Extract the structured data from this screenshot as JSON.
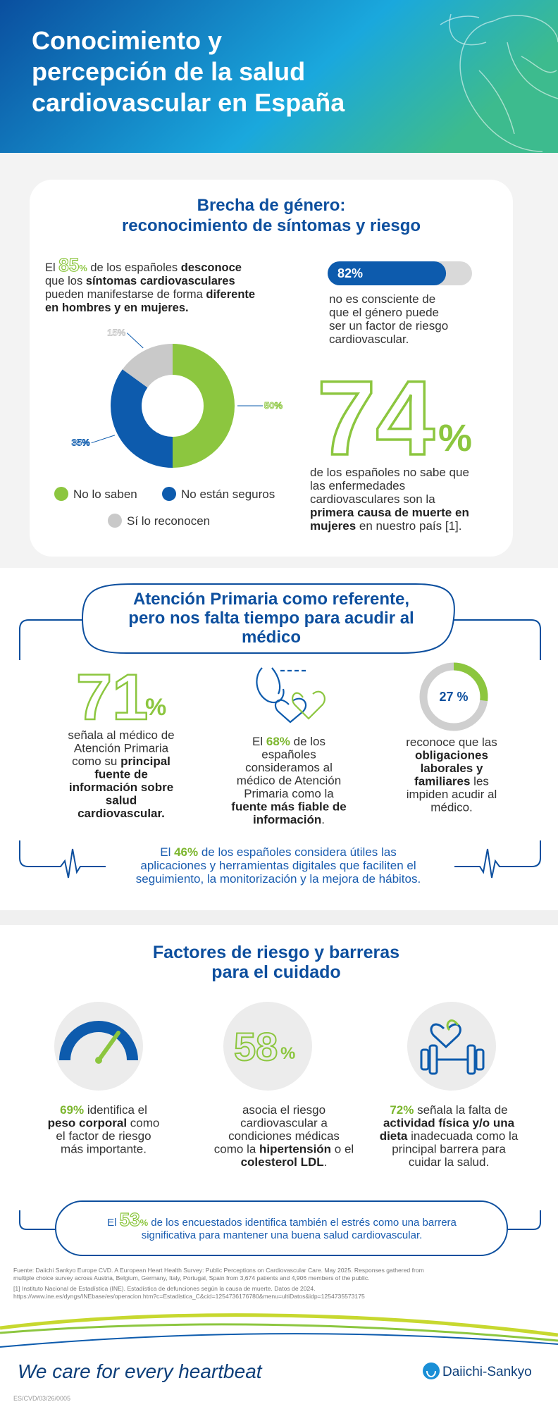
{
  "header": {
    "title": [
      "Conocimiento y",
      "percepción de la salud",
      "cardiovascular en España"
    ]
  },
  "gender": {
    "title": [
      "Brecha de género:",
      "reconocimiento de síntomas y riesgo"
    ],
    "stat85": [
      [
        "El ",
        "85",
        "%",
        " de los españoles ",
        "desconoce"
      ],
      [
        "que los ",
        "síntomas cardiovasculares"
      ],
      [
        "pueden manifestarse de forma ",
        "diferente"
      ],
      [
        "en hombres y en mujeres."
      ]
    ],
    "donut": {
      "type": "pie",
      "series": [
        {
          "name": "No lo saben",
          "color": "#8cc63f",
          "value": 50,
          "label": "50%"
        },
        {
          "name": "No están seguros",
          "color": "#0d5bad",
          "value": 35,
          "label": "35%"
        },
        {
          "name": "Sí lo reconocen",
          "color": "#c9c9c9",
          "value": 15,
          "label": "15%"
        }
      ]
    },
    "bar82": {
      "value": 82,
      "label": "82%",
      "color": "#0d5bad",
      "text": [
        [
          "no es consciente de"
        ],
        [
          "que el género puede"
        ],
        [
          "ser un factor de riesgo"
        ],
        [
          "cardiovascular."
        ]
      ]
    },
    "stat74": {
      "number": "74",
      "unit": "%",
      "text": [
        [
          "de los españoles no sabe que"
        ],
        [
          "las enfermedades"
        ],
        [
          "cardiovasculares son la"
        ],
        [
          "primera causa de muerte en"
        ],
        [
          "mujeres",
          " en nuestro país [1]."
        ]
      ]
    }
  },
  "primary": {
    "title": [
      "Atención Primaria como referente,",
      "pero nos falta tiempo para acudir al",
      "médico"
    ],
    "stat71": {
      "number": "71",
      "unit": "%",
      "text": [
        [
          "señala al médico de"
        ],
        [
          "Atención Primaria"
        ],
        [
          "como su ",
          "principal"
        ],
        [
          "fuente de"
        ],
        [
          "información sobre"
        ],
        [
          "salud"
        ],
        [
          "cardiovascular."
        ]
      ]
    },
    "stat68": [
      [
        "El ",
        "68%",
        " de los"
      ],
      [
        "españoles"
      ],
      [
        "consideramos al"
      ],
      [
        "médico de Atención"
      ],
      [
        "Primaria como la"
      ],
      [
        "fuente más fiable de"
      ],
      [
        "información",
        "."
      ]
    ],
    "ring27": {
      "value": 27,
      "label": "27 %",
      "text": [
        [
          "reconoce que las"
        ],
        [
          "obligaciones"
        ],
        [
          "laborales y"
        ],
        [
          "familiares",
          " les"
        ],
        [
          "impiden acudir al"
        ],
        [
          "médico."
        ]
      ]
    },
    "digital": [
      [
        "El ",
        "46%",
        " de los españoles considera útiles las"
      ],
      [
        "aplicaciones y herramientas digitales que faciliten el"
      ],
      [
        "seguimiento, la monitorización y la mejora de hábitos."
      ]
    ]
  },
  "risk": {
    "title": [
      "Factores de riesgo y barreras",
      "para el cuidado"
    ],
    "stat69": [
      [
        "69%",
        " identifica el"
      ],
      [
        "peso corporal",
        " como"
      ],
      [
        "el factor de riesgo"
      ],
      [
        "más importante."
      ]
    ],
    "stat58": {
      "number": "58",
      "unit": "%",
      "text": [
        [
          "asocia el riesgo"
        ],
        [
          "cardiovascular a"
        ],
        [
          "condiciones médicas"
        ],
        [
          "como la ",
          "hipertensión",
          " o el"
        ],
        [
          "colesterol LDL",
          "."
        ]
      ]
    },
    "stat72": [
      [
        "72%",
        " señala la falta de"
      ],
      [
        "actividad física y/o una"
      ],
      [
        "dieta",
        " inadecuada como la"
      ],
      [
        "principal barrera para"
      ],
      [
        "cuidar la salud."
      ]
    ],
    "stress": [
      [
        "El ",
        "53",
        "%",
        " de los encuestados identifica también el estrés como una barrera"
      ],
      [
        "significativa para mantener una buena salud cardiovascular."
      ]
    ]
  },
  "footnotes": [
    "Fuente: Daiichi Sankyo Europe CVD. A European Heart Health Survey: Public Perceptions on Cardiovascular Care. May 2025. Responses gathered from",
    "multiple choice survey across Austria, Belgium, Germany, Italy, Portugal, Spain from 3,674 patients and 4,906 members of the public.",
    "[1] Instituto Nacional de Estadística (INE). Estadística de defunciones según la causa de muerte. Datos de 2024.",
    "https://www.ine.es/dyngs/INEbase/es/operacion.htm?c=Estadistica_C&cid=1254736176780&menu=ultiDatos&idp=1254735573175"
  ],
  "footer": {
    "slogan": "We care for every heartbeat",
    "brand": "Daiichi-Sankyo",
    "code": "ES/CVD/03/26/0005"
  }
}
